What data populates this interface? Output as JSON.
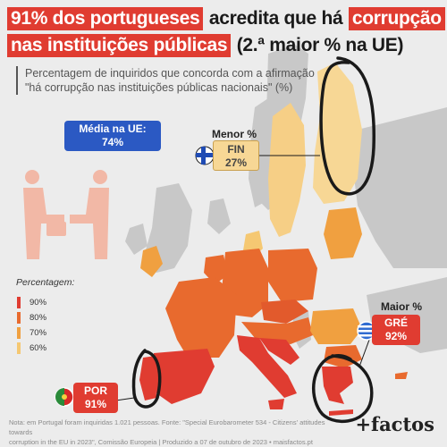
{
  "title": {
    "line1_highlight": "91% dos portugueses",
    "line1_plain": "acredita que há",
    "line1_highlight2": "corrupção",
    "line2_highlight": "nas instituições públicas",
    "line2_plain": "(2.ª maior % na UE)"
  },
  "subtitle": {
    "line1": "Percentagem de inquiridos que concorda com a afirmação",
    "line2": "\"há corrupção nas instituições públicas nacionais\" (%)"
  },
  "callouts": {
    "eu": {
      "label": "Média na UE:",
      "value": "74%"
    },
    "min": {
      "heading": "Menor %",
      "country": "FIN",
      "value": "27%"
    },
    "max": {
      "heading": "Maior %",
      "country": "GRÉ",
      "value": "92%"
    },
    "por": {
      "country": "POR",
      "value": "91%"
    }
  },
  "legend": {
    "title": "Percentagem:",
    "items": [
      {
        "label": "90%",
        "color": "#e03c31"
      },
      {
        "label": "80%",
        "color": "#e86a2e"
      },
      {
        "label": "70%",
        "color": "#f0a040"
      },
      {
        "label": "60%",
        "color": "#f5c872"
      }
    ]
  },
  "footnote": {
    "line1": "Nota: em Portugal foram inquiridas 1.021 pessoas. Fonte: \"Special Eurobarometer 534 - Citizens' attitudes towards",
    "line2": "corruption in the EU in 2023\", Comissão Europeia | Produzido a 07 de outubro de 2023 • maisfactos.pt"
  },
  "brand": "+factos",
  "map_values": {
    "Grécia": 92,
    "Portugal": 91,
    "Finlândia": 27
  },
  "colors": {
    "highlight": "#e03c31",
    "eu_blue": "#2b59c3",
    "fin_fill": "#f7d795",
    "non_eu": "#c4c4c4",
    "sea": "#ececec"
  }
}
